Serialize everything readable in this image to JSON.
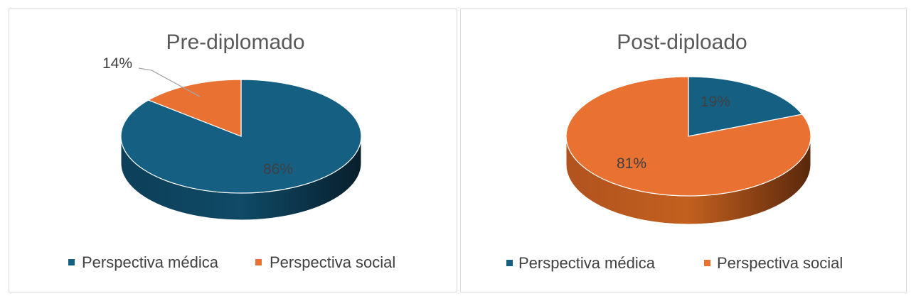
{
  "colors": {
    "medica": "#156082",
    "social": "#E97132"
  },
  "chart_data": [
    {
      "type": "pie",
      "title": "Pre-diplomado",
      "categories": [
        "Perspectiva médica",
        "Perspectiva social"
      ],
      "values": [
        86,
        14
      ],
      "data_labels": [
        "86%",
        "14%"
      ],
      "legend_position": "bottom"
    },
    {
      "type": "pie",
      "title": "Post-diploado",
      "categories": [
        "Perspectiva médica",
        "Perspectiva social"
      ],
      "values": [
        19,
        81
      ],
      "data_labels": [
        "19%",
        "81%"
      ],
      "legend_position": "bottom"
    }
  ]
}
